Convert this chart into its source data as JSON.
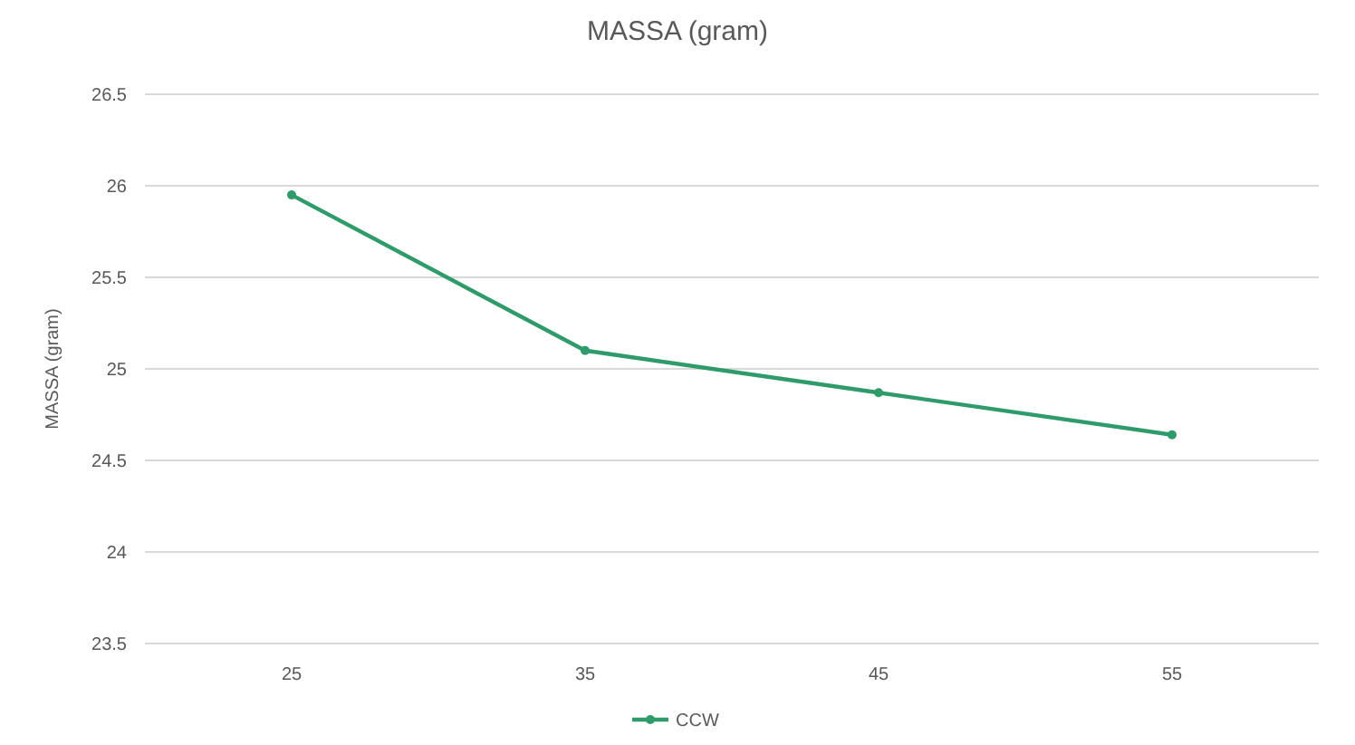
{
  "chart_data": {
    "type": "line",
    "title": "MASSA (gram)",
    "ylabel": "MASSA (gram)",
    "categories": [
      "25",
      "35",
      "45",
      "55"
    ],
    "series": [
      {
        "name": "CCW",
        "color": "#2f9a6a",
        "values": [
          25.95,
          25.1,
          24.87,
          24.64
        ]
      }
    ],
    "ylim": [
      23.5,
      26.5
    ],
    "yticks": [
      23.5,
      24,
      24.5,
      25,
      25.5,
      26,
      26.5
    ],
    "grid": "y",
    "legend": "bottom",
    "marker": "circle"
  }
}
